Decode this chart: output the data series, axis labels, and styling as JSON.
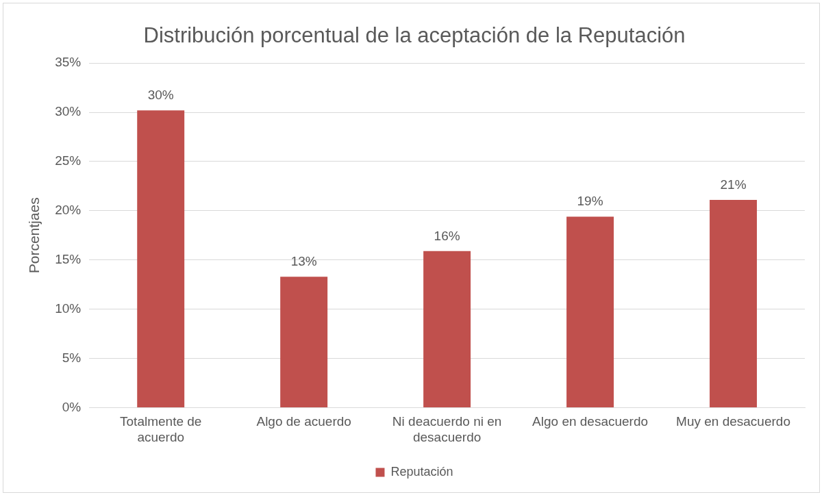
{
  "chart_data": {
    "type": "bar",
    "title": "Distribución porcentual de la aceptación de la Reputación",
    "ylabel": "Porcentjaes",
    "categories": [
      "Totalmente de acuerdo",
      "Algo de acuerdo",
      "Ni deacuerdo ni en desacuerdo",
      "Algo en desacuerdo",
      "Muy en desacuerdo"
    ],
    "series": [
      {
        "name": "Reputación",
        "color": "#c0504d",
        "values": [
          30.2,
          13.3,
          15.9,
          19.4,
          21.1
        ],
        "value_labels": [
          "30%",
          "13%",
          "16%",
          "19%",
          "21%"
        ]
      }
    ],
    "ylim": [
      0,
      35
    ],
    "yticks": [
      {
        "value": 0,
        "label": "0%"
      },
      {
        "value": 5,
        "label": "5%"
      },
      {
        "value": 10,
        "label": "10%"
      },
      {
        "value": 15,
        "label": "15%"
      },
      {
        "value": 20,
        "label": "20%"
      },
      {
        "value": 25,
        "label": "25%"
      },
      {
        "value": 30,
        "label": "30%"
      },
      {
        "value": 35,
        "label": "35%"
      }
    ],
    "grid": "y",
    "legend": "bottom"
  }
}
